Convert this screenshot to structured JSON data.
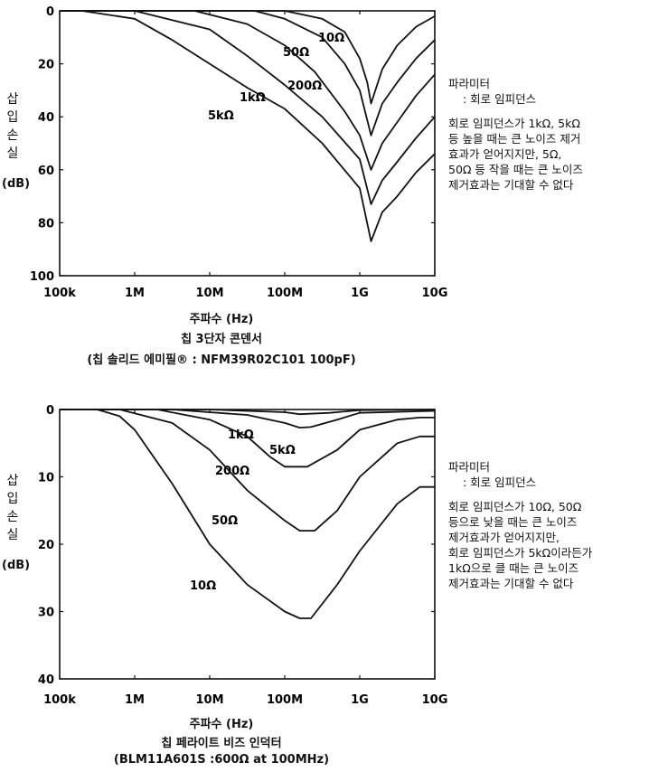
{
  "chart_data": [
    {
      "type": "line",
      "title": "칩 3단자 콘덴서",
      "subtitle": "(칩 솔리드 에미필® : NFM39R02C101 100pF)",
      "xlabel": "주파수 (Hz)",
      "ylabel": "삽입손실",
      "ylabel_unit": "(dB)",
      "xscale": "log",
      "xlim_log10": [
        5,
        10
      ],
      "ylim": [
        0,
        100
      ],
      "y_inverted": true,
      "xticks": [
        "100k",
        "1M",
        "10M",
        "100M",
        "1G",
        "10G"
      ],
      "yticks": [
        "0",
        "20",
        "40",
        "60",
        "80",
        "100"
      ],
      "grid": false,
      "series": [
        {
          "name": "10Ω",
          "x_log10": [
            5,
            8.0,
            8.5,
            8.8,
            9.0,
            9.1,
            9.15,
            9.3,
            9.5,
            9.75,
            10
          ],
          "y": [
            0,
            0,
            3,
            8,
            18,
            27,
            35,
            22,
            13,
            6,
            2
          ]
        },
        {
          "name": "50Ω",
          "x_log10": [
            5,
            7.6,
            8.0,
            8.5,
            8.8,
            9.0,
            9.15,
            9.3,
            9.5,
            9.75,
            10
          ],
          "y": [
            0,
            0,
            3,
            10,
            20,
            30,
            47,
            35,
            27,
            18,
            11
          ]
        },
        {
          "name": "200Ω",
          "x_log10": [
            5,
            6.8,
            7.5,
            8.0,
            8.4,
            8.8,
            9.0,
            9.15,
            9.3,
            9.5,
            9.75,
            10
          ],
          "y": [
            0,
            0,
            5,
            13,
            23,
            38,
            47,
            60,
            50,
            42,
            32,
            24
          ]
        },
        {
          "name": "1kΩ",
          "x_log10": [
            5,
            6.0,
            7.0,
            7.5,
            8.0,
            8.5,
            9.0,
            9.15,
            9.3,
            9.5,
            9.75,
            10
          ],
          "y": [
            0,
            0,
            7,
            17,
            28,
            40,
            56,
            73,
            64,
            57,
            48,
            40
          ]
        },
        {
          "name": "5kΩ",
          "x_log10": [
            5,
            5.3,
            6.0,
            6.5,
            7.0,
            7.5,
            8.0,
            8.5,
            9.0,
            9.15,
            9.3,
            9.5,
            9.75,
            10
          ],
          "y": [
            0,
            0,
            3,
            11,
            20,
            29,
            37,
            50,
            67,
            87,
            76,
            70,
            61,
            54
          ]
        }
      ]
    },
    {
      "type": "line",
      "title": "칩 페라이트 비즈 인덕터",
      "subtitle": "(BLM11A601S :600Ω at 100MHz)",
      "xlabel": "주파수 (Hz)",
      "ylabel": "삽입손실",
      "ylabel_unit": "(dB)",
      "xscale": "log",
      "xlim_log10": [
        5,
        10
      ],
      "ylim": [
        0,
        40
      ],
      "y_inverted": true,
      "xticks": [
        "100k",
        "1M",
        "10M",
        "100M",
        "1G",
        "10G"
      ],
      "yticks": [
        "0",
        "10",
        "20",
        "30",
        "40"
      ],
      "grid": false,
      "series": [
        {
          "name": "1kΩ",
          "x_log10": [
            5,
            6.5,
            7.5,
            8.0,
            8.2,
            8.35,
            8.7,
            9.0,
            10
          ],
          "y": [
            0,
            0,
            0.8,
            2,
            2.7,
            2.6,
            1.5,
            0.5,
            0.2
          ]
        },
        {
          "name": "5kΩ",
          "x_log10": [
            5,
            7.0,
            8.0,
            8.2,
            8.6,
            9.0,
            10
          ],
          "y": [
            0,
            0,
            0.4,
            0.7,
            0.5,
            0.1,
            0
          ]
        },
        {
          "name": "200Ω",
          "x_log10": [
            5,
            6.3,
            7.0,
            7.5,
            7.8,
            8.0,
            8.3,
            8.7,
            9.0,
            9.5,
            9.8,
            10
          ],
          "y": [
            0,
            0,
            1.5,
            4,
            7,
            8.5,
            8.5,
            6,
            3,
            1.5,
            1.2,
            1.2
          ]
        },
        {
          "name": "50Ω",
          "x_log10": [
            5,
            5.8,
            6.5,
            7.0,
            7.5,
            8.0,
            8.2,
            8.4,
            8.7,
            9.0,
            9.5,
            9.8,
            10
          ],
          "y": [
            0,
            0,
            2,
            6,
            12,
            16.5,
            18,
            18,
            15,
            10,
            5,
            4,
            4
          ]
        },
        {
          "name": "10Ω",
          "x_log10": [
            5,
            5.5,
            5.8,
            6.0,
            6.5,
            7.0,
            7.5,
            8.0,
            8.2,
            8.35,
            8.7,
            9.0,
            9.5,
            9.8,
            10
          ],
          "y": [
            0,
            0,
            1,
            3,
            11,
            20,
            26,
            30,
            31,
            31,
            26,
            21,
            14,
            11.5,
            11.5
          ]
        }
      ]
    }
  ],
  "notes": [
    {
      "heading": "파라미터",
      "param": ": 회로 임피던스",
      "lines": [
        "회로 임피던스가 1kΩ, 5kΩ",
        "등 높을 때는 큰 노이즈 제거",
        "효과가 얻어지지만, 5Ω,",
        "50Ω 등 작을 때는 큰 노이즈",
        "제거효과는 기대할 수 없다"
      ]
    },
    {
      "heading": "파라미터",
      "param": ": 회로 임피던스",
      "lines": [
        "회로 임피던스가 10Ω, 50Ω",
        "등으로 낮을 때는 큰 노이즈",
        "제거효과가 얻어지지만,",
        "회로 임피던스가 5kΩ이라든가",
        "1kΩ으로 클 때는 큰 노이즈",
        "제거효과는 기대할 수 없다"
      ]
    }
  ]
}
